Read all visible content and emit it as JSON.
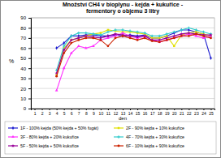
{
  "chart_data": {
    "type": "line",
    "title": "Množství CH4 v bioplynu - kejda + kukuřice - fermentory o objemu 3 litry",
    "x_label": "den",
    "y_label": "%",
    "x": [
      1,
      2,
      3,
      4,
      5,
      6,
      7,
      8,
      9,
      10,
      11,
      12,
      13,
      14,
      15,
      16,
      17,
      18,
      19,
      20,
      21,
      22,
      23,
      24,
      25
    ],
    "xlim": [
      0.5,
      25.5
    ],
    "xticks": [
      1,
      2,
      3,
      4,
      5,
      6,
      7,
      8,
      9,
      10,
      11,
      12,
      13,
      14,
      15,
      16,
      17,
      18,
      19,
      20,
      21,
      22,
      23,
      24,
      25
    ],
    "ylim": [
      0,
      90
    ],
    "yticks": [
      0,
      10,
      20,
      30,
      40,
      50,
      60,
      70,
      80,
      90
    ],
    "grid": true,
    "legend": "bottom",
    "series": [
      {
        "name": "1F - 100% kejda (50% kejda + 50% fugát)",
        "color": "#1f1fd0",
        "marker": "diamond",
        "values": [
          null,
          null,
          null,
          60,
          65,
          72,
          72,
          73,
          73,
          72,
          72,
          73,
          72,
          73,
          72,
          73,
          70,
          70,
          72,
          75,
          78,
          78,
          76,
          74,
          50
        ]
      },
      {
        "name": "2F - 90% kejda + 10% kukuřice",
        "color": "#e0e000",
        "marker": "square",
        "values": [
          null,
          null,
          null,
          33,
          60,
          68,
          70,
          72,
          74,
          75,
          78,
          77,
          76,
          76,
          75,
          74,
          70,
          70,
          72,
          62,
          73,
          75,
          76,
          74,
          72
        ]
      },
      {
        "name": "3F - 80% kejda + 20% kukuřice",
        "color": "#ff33ff",
        "marker": "triangle",
        "values": [
          null,
          null,
          null,
          18,
          40,
          55,
          62,
          60,
          62,
          68,
          70,
          72,
          75,
          72,
          70,
          72,
          68,
          66,
          68,
          70,
          72,
          74,
          72,
          70,
          72
        ]
      },
      {
        "name": "4F - 70% kejda + 30% kukuřice",
        "color": "#33cccc",
        "marker": "cross",
        "values": [
          null,
          null,
          null,
          38,
          62,
          72,
          75,
          75,
          74,
          73,
          76,
          78,
          78,
          77,
          76,
          75,
          72,
          72,
          74,
          76,
          78,
          80,
          78,
          76,
          74
        ]
      },
      {
        "name": "5F - 50% kejda + 50% kukuřice",
        "color": "#990099",
        "marker": "star",
        "values": [
          null,
          null,
          null,
          35,
          58,
          68,
          70,
          72,
          71,
          70,
          72,
          74,
          73,
          72,
          71,
          72,
          68,
          68,
          70,
          72,
          74,
          75,
          74,
          73,
          73
        ]
      },
      {
        "name": "6F - 10% kejda + 90% kukuřice",
        "color": "#cc2200",
        "marker": "circle",
        "values": [
          null,
          null,
          null,
          32,
          55,
          65,
          68,
          70,
          70,
          68,
          62,
          70,
          72,
          70,
          68,
          70,
          67,
          66,
          68,
          70,
          72,
          72,
          74,
          72,
          70
        ]
      }
    ]
  }
}
